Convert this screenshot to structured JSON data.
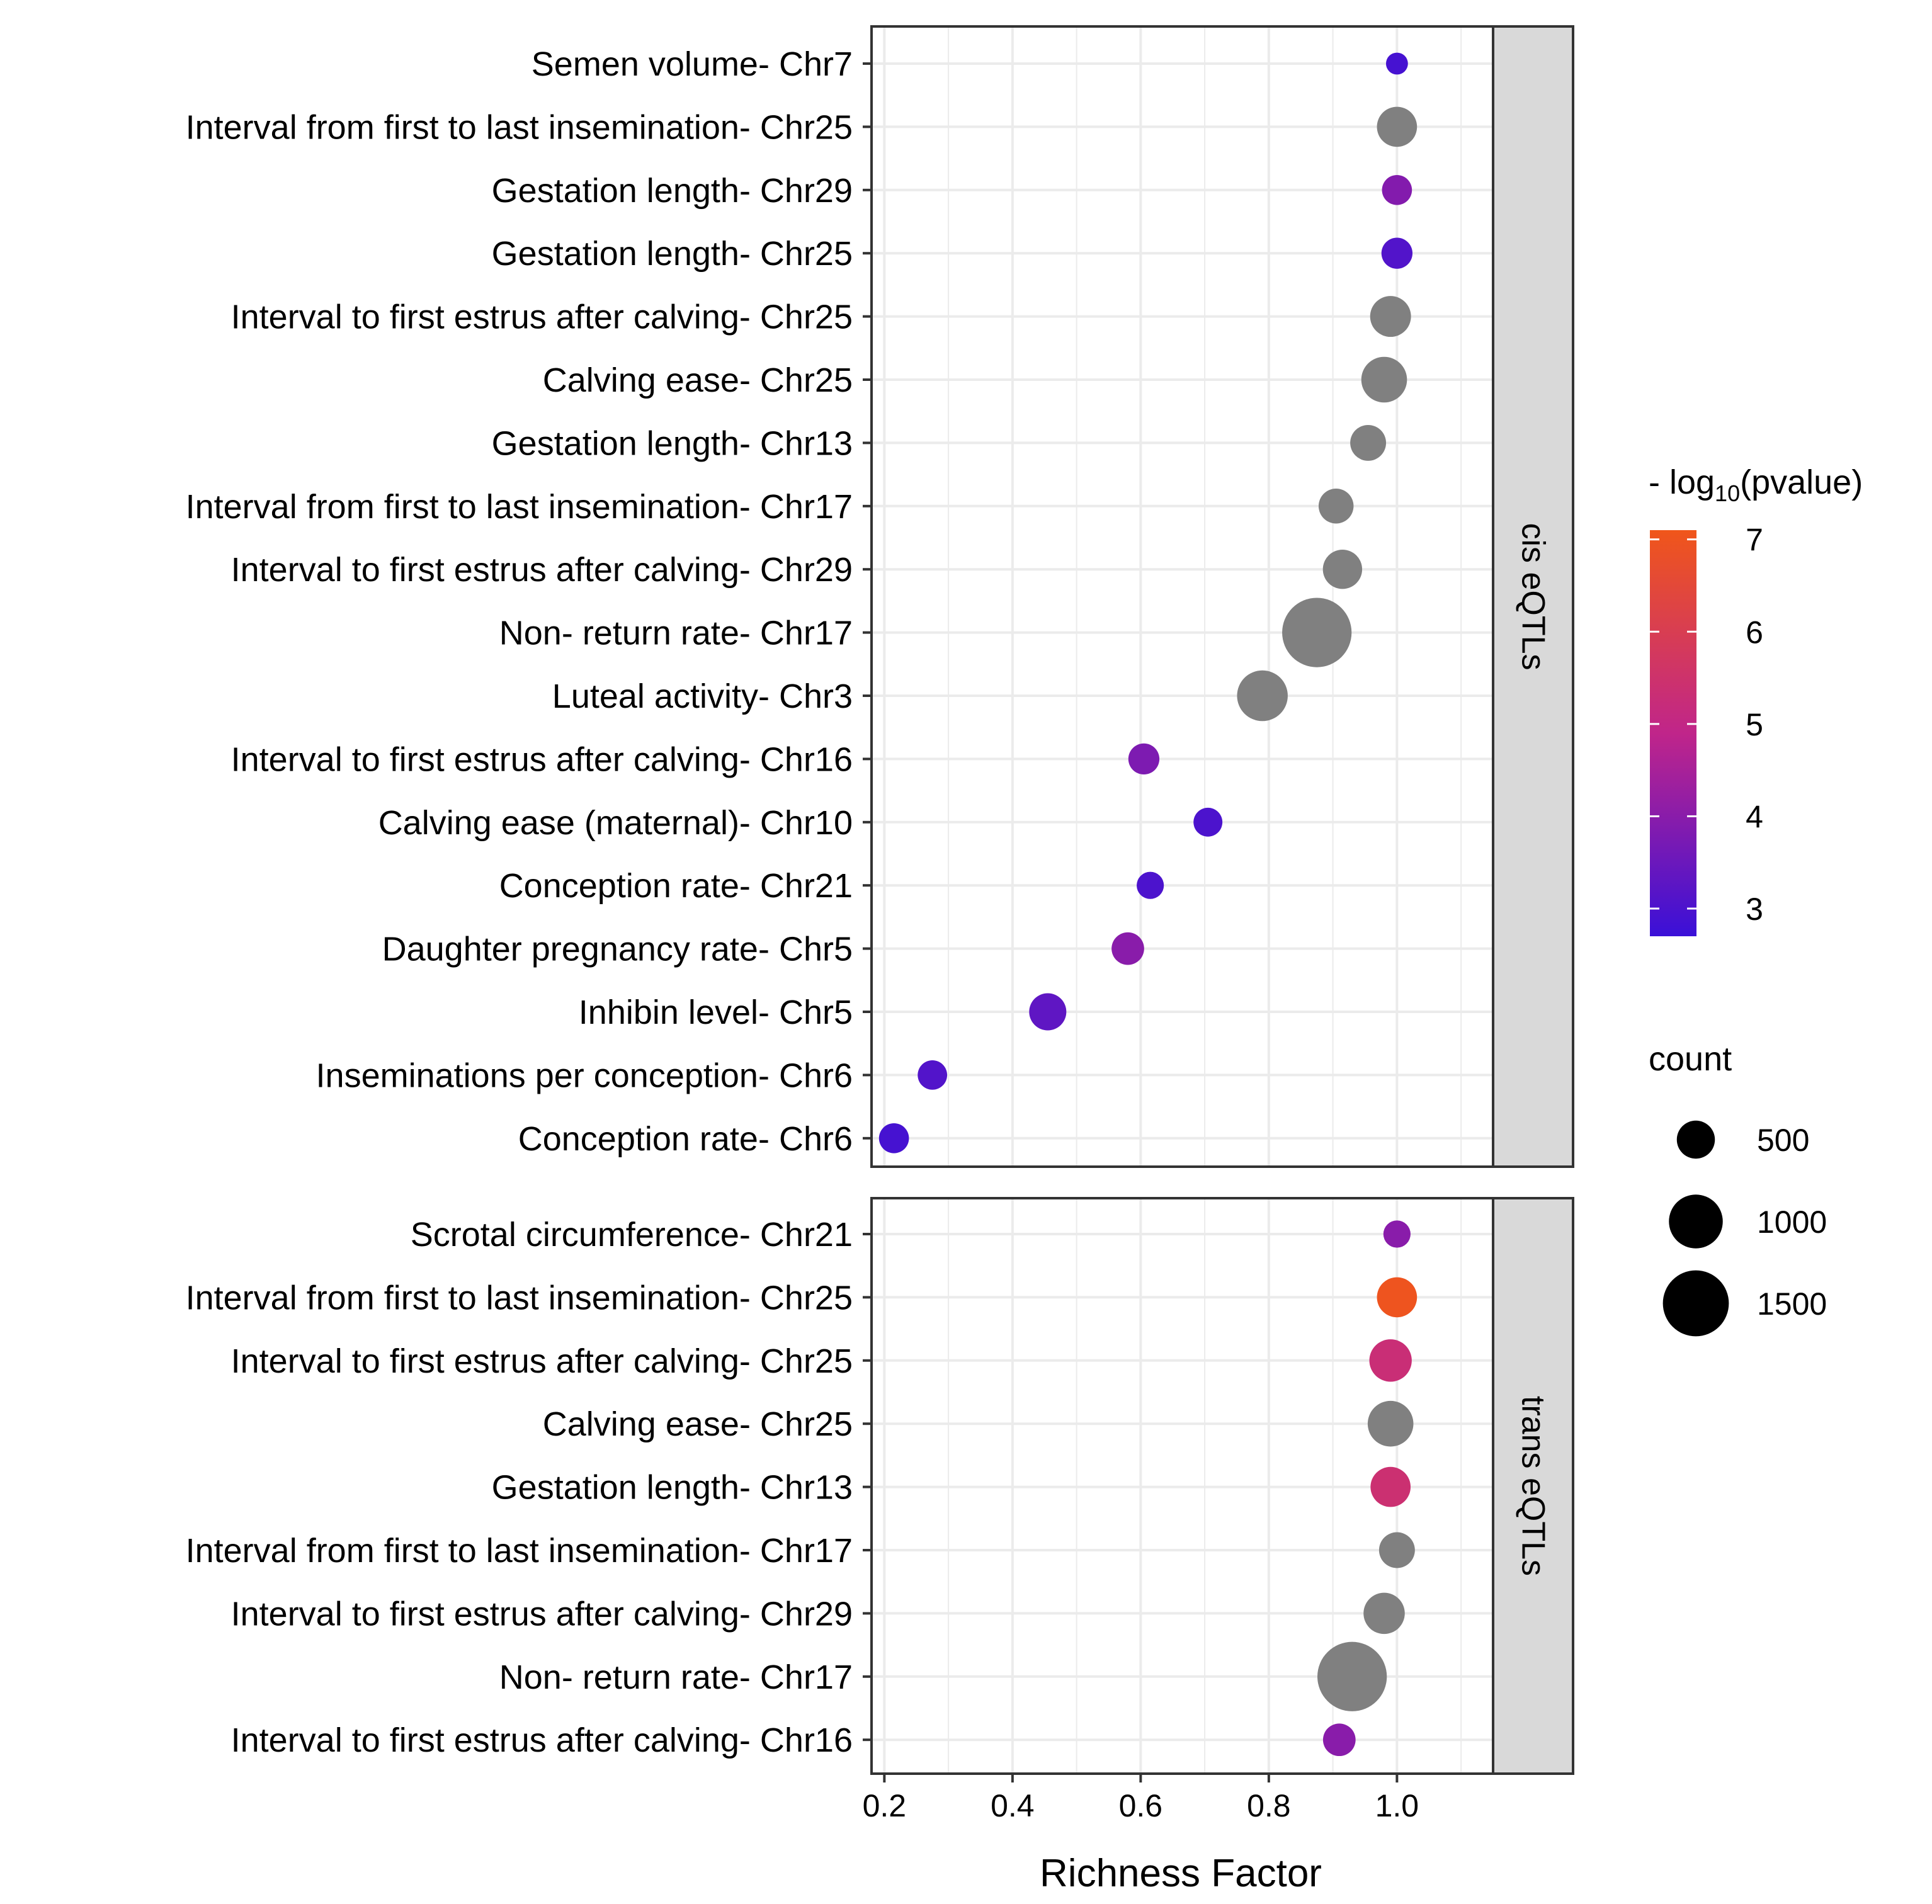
{
  "chart_data": {
    "type": "scatter",
    "xlabel": "Richness Factor",
    "xlim": [
      0.18,
      1.15
    ],
    "xticks": [
      0.2,
      0.4,
      0.6,
      0.8,
      1.0
    ],
    "xtick_labels": [
      "0.2",
      "0.4",
      "0.6",
      "0.8",
      "1.0"
    ],
    "grid": true,
    "colorbar": {
      "title_prefix": "- log",
      "title_sub": "10",
      "title_suffix": "(pvalue)",
      "min": 2.7,
      "max": 7.1,
      "ticks": [
        3,
        4,
        5,
        6,
        7
      ],
      "tick_labels": [
        "3",
        "4",
        "5",
        "6",
        "7"
      ],
      "low_color": "#3a10d8",
      "mid_color": "#c0258a",
      "high_color": "#f0561a",
      "na_color": "#808080"
    },
    "size_legend": {
      "title": "count",
      "values": [
        500,
        1000,
        1500
      ],
      "labels": [
        "500",
        "1000",
        "1500"
      ]
    },
    "panels": [
      {
        "strip": "cis eQTLs",
        "points": [
          {
            "label": "Semen volume- Chr7",
            "x": 1.0,
            "count": 150,
            "logp": 2.9
          },
          {
            "label": "Interval from first to last insemination- Chr25",
            "x": 1.0,
            "count": 500,
            "logp": null
          },
          {
            "label": "Gestation length- Chr29",
            "x": 1.0,
            "count": 280,
            "logp": 3.9
          },
          {
            "label": "Gestation length- Chr25",
            "x": 1.0,
            "count": 300,
            "logp": 3.1
          },
          {
            "label": "Interval to first estrus after calving- Chr25",
            "x": 0.99,
            "count": 520,
            "logp": null
          },
          {
            "label": "Calving ease- Chr25",
            "x": 0.98,
            "count": 650,
            "logp": null
          },
          {
            "label": "Gestation length- Chr13",
            "x": 0.955,
            "count": 400,
            "logp": null
          },
          {
            "label": "Interval from first to last insemination- Chr17",
            "x": 0.905,
            "count": 380,
            "logp": null
          },
          {
            "label": "Interval to first estrus after calving- Chr29",
            "x": 0.915,
            "count": 480,
            "logp": null
          },
          {
            "label": "Non- return rate- Chr17",
            "x": 0.875,
            "count": 1500,
            "logp": null
          },
          {
            "label": "Luteal activity- Chr3",
            "x": 0.79,
            "count": 800,
            "logp": null
          },
          {
            "label": "Interval to first estrus after calving- Chr16",
            "x": 0.605,
            "count": 300,
            "logp": 3.8
          },
          {
            "label": "Calving ease (maternal)- Chr10",
            "x": 0.705,
            "count": 260,
            "logp": 3.0
          },
          {
            "label": "Conception rate- Chr21",
            "x": 0.615,
            "count": 230,
            "logp": 3.0
          },
          {
            "label": "Daughter pregnancy rate- Chr5",
            "x": 0.58,
            "count": 330,
            "logp": 4.0
          },
          {
            "label": "Inhibin level- Chr5",
            "x": 0.455,
            "count": 430,
            "logp": 3.3
          },
          {
            "label": "Inseminations per conception- Chr6",
            "x": 0.275,
            "count": 270,
            "logp": 3.1
          },
          {
            "label": "Conception rate- Chr6",
            "x": 0.215,
            "count": 280,
            "logp": 2.9
          }
        ]
      },
      {
        "strip": "trans eQTLs",
        "points": [
          {
            "label": "Scrotal circumference- Chr21",
            "x": 1.0,
            "count": 230,
            "logp": 4.0
          },
          {
            "label": "Interval from first to last insemination- Chr25",
            "x": 1.0,
            "count": 500,
            "logp": 7.0
          },
          {
            "label": "Interval to first estrus after calving- Chr25",
            "x": 0.99,
            "count": 560,
            "logp": 5.3
          },
          {
            "label": "Calving ease- Chr25",
            "x": 0.99,
            "count": 650,
            "logp": null
          },
          {
            "label": "Gestation length- Chr13",
            "x": 0.99,
            "count": 500,
            "logp": 5.4
          },
          {
            "label": "Interval from first to last insemination- Chr17",
            "x": 1.0,
            "count": 400,
            "logp": null
          },
          {
            "label": "Interval to first estrus after calving- Chr29",
            "x": 0.98,
            "count": 530,
            "logp": null
          },
          {
            "label": "Non- return rate- Chr17",
            "x": 0.93,
            "count": 1500,
            "logp": null
          },
          {
            "label": "Interval to first estrus after calving- Chr16",
            "x": 0.91,
            "count": 330,
            "logp": 4.0
          }
        ]
      }
    ]
  }
}
